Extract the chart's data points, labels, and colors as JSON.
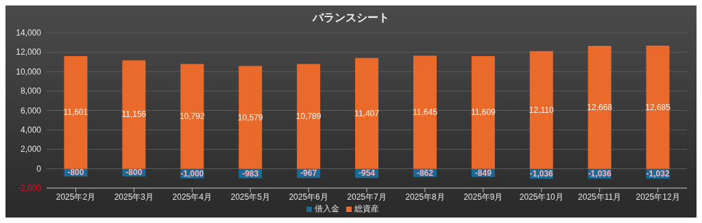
{
  "chart_data": {
    "type": "bar",
    "title": "バランスシート",
    "stacked": true,
    "categories": [
      "2025年2月",
      "2025年3月",
      "2025年4月",
      "2025年5月",
      "2025年6月",
      "2025年7月",
      "2025年8月",
      "2025年9月",
      "2025年10月",
      "2025年11月",
      "2025年12月"
    ],
    "series": [
      {
        "name": "借入金",
        "color": "#1b6a96",
        "values": [
          -800,
          -800,
          -1000,
          -983,
          -967,
          -954,
          -862,
          -849,
          -1036,
          -1036,
          -1032
        ],
        "value_labels": [
          "-800",
          "-800",
          "-1,000",
          "-983",
          "-967",
          "-954",
          "-862",
          "-849",
          "-1,036",
          "-1,036",
          "-1,032"
        ]
      },
      {
        "name": "総資産",
        "color": "#ea6a2c",
        "values": [
          11601,
          11156,
          10792,
          10579,
          10789,
          11407,
          11645,
          11609,
          12110,
          12668,
          12685
        ],
        "value_labels": [
          "11,601",
          "11,156",
          "10,792",
          "10,579",
          "10,789",
          "11,407",
          "11,645",
          "11,609",
          "12,110",
          "12,668",
          "12,685"
        ]
      }
    ],
    "ylim": [
      -2000,
      14000
    ],
    "yticks": [
      {
        "value": -2000,
        "label": "-2,000"
      },
      0,
      {
        "value": 2000,
        "label": "2,000"
      },
      {
        "value": 4000,
        "label": "4,000"
      },
      {
        "value": 6000,
        "label": "6,000"
      },
      {
        "value": 8000,
        "label": "8,000"
      },
      {
        "value": 10000,
        "label": "10,000"
      },
      {
        "value": 12000,
        "label": "12,000"
      },
      {
        "value": 14000,
        "label": "14,000"
      }
    ],
    "grid": "y",
    "legend": "bottom"
  }
}
